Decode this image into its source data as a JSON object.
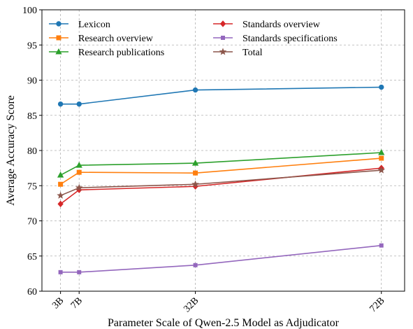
{
  "chart_data": {
    "type": "line",
    "title": "",
    "xlabel": "Parameter Scale of Qwen-2.5 Model as Adjudicator",
    "ylabel": "Average Accuracy Score",
    "x": [
      3,
      7,
      32,
      72
    ],
    "x_tick_labels": [
      "3B",
      "7B",
      "32B",
      "72B"
    ],
    "ylim": [
      60,
      100
    ],
    "yticks": [
      60,
      65,
      70,
      75,
      80,
      85,
      90,
      95,
      100
    ],
    "xlim": [
      -1,
      77
    ],
    "grid": true,
    "legend_position": "top-left",
    "series": [
      {
        "name": "Lexicon",
        "values": [
          86.6,
          86.6,
          88.6,
          89.0
        ],
        "color": "#1f77b4",
        "marker": "circle"
      },
      {
        "name": "Research overview",
        "values": [
          75.2,
          76.9,
          76.8,
          78.9
        ],
        "color": "#ff7f0e",
        "marker": "square"
      },
      {
        "name": "Research publications",
        "values": [
          76.5,
          77.9,
          78.2,
          79.7
        ],
        "color": "#2ca02c",
        "marker": "triangle"
      },
      {
        "name": "Standards overview",
        "values": [
          72.4,
          74.4,
          74.9,
          77.5
        ],
        "color": "#d62728",
        "marker": "diamond"
      },
      {
        "name": "Standards specifications",
        "values": [
          62.7,
          62.7,
          63.7,
          66.5
        ],
        "color": "#9467bd",
        "marker": "square-small"
      },
      {
        "name": "Total",
        "values": [
          73.6,
          74.7,
          75.2,
          77.2
        ],
        "color": "#8c564b",
        "marker": "star"
      }
    ]
  }
}
